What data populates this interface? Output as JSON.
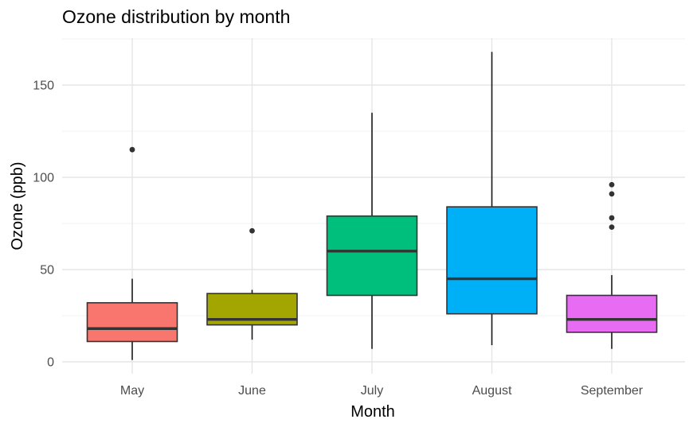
{
  "chart_data": {
    "type": "boxplot",
    "title": "Ozone distribution by month",
    "xlabel": "Month",
    "ylabel": "Ozone (ppb)",
    "ylim": [
      -10,
      175
    ],
    "yticks": [
      0,
      50,
      100,
      150
    ],
    "grid": true,
    "legend": "none",
    "categories": [
      "May",
      "June",
      "July",
      "August",
      "September"
    ],
    "boxes": [
      {
        "category": "May",
        "whisker_low": 1,
        "q1": 11,
        "median": 18,
        "q3": 32,
        "whisker_high": 45,
        "outliers": [
          115
        ],
        "fill": "#F8766D"
      },
      {
        "category": "June",
        "whisker_low": 12,
        "q1": 20,
        "median": 23,
        "q3": 37,
        "whisker_high": 39,
        "outliers": [
          71
        ],
        "fill": "#A3A500"
      },
      {
        "category": "July",
        "whisker_low": 7,
        "q1": 36,
        "median": 60,
        "q3": 79,
        "whisker_high": 135,
        "outliers": [],
        "fill": "#00BF7D"
      },
      {
        "category": "August",
        "whisker_low": 9,
        "q1": 26,
        "median": 45,
        "q3": 84,
        "whisker_high": 168,
        "outliers": [],
        "fill": "#00B0F6"
      },
      {
        "category": "September",
        "whisker_low": 7,
        "q1": 16,
        "median": 23,
        "q3": 36,
        "whisker_high": 47,
        "outliers": [
          73,
          78,
          91,
          96
        ],
        "fill": "#E76BF3"
      }
    ]
  }
}
